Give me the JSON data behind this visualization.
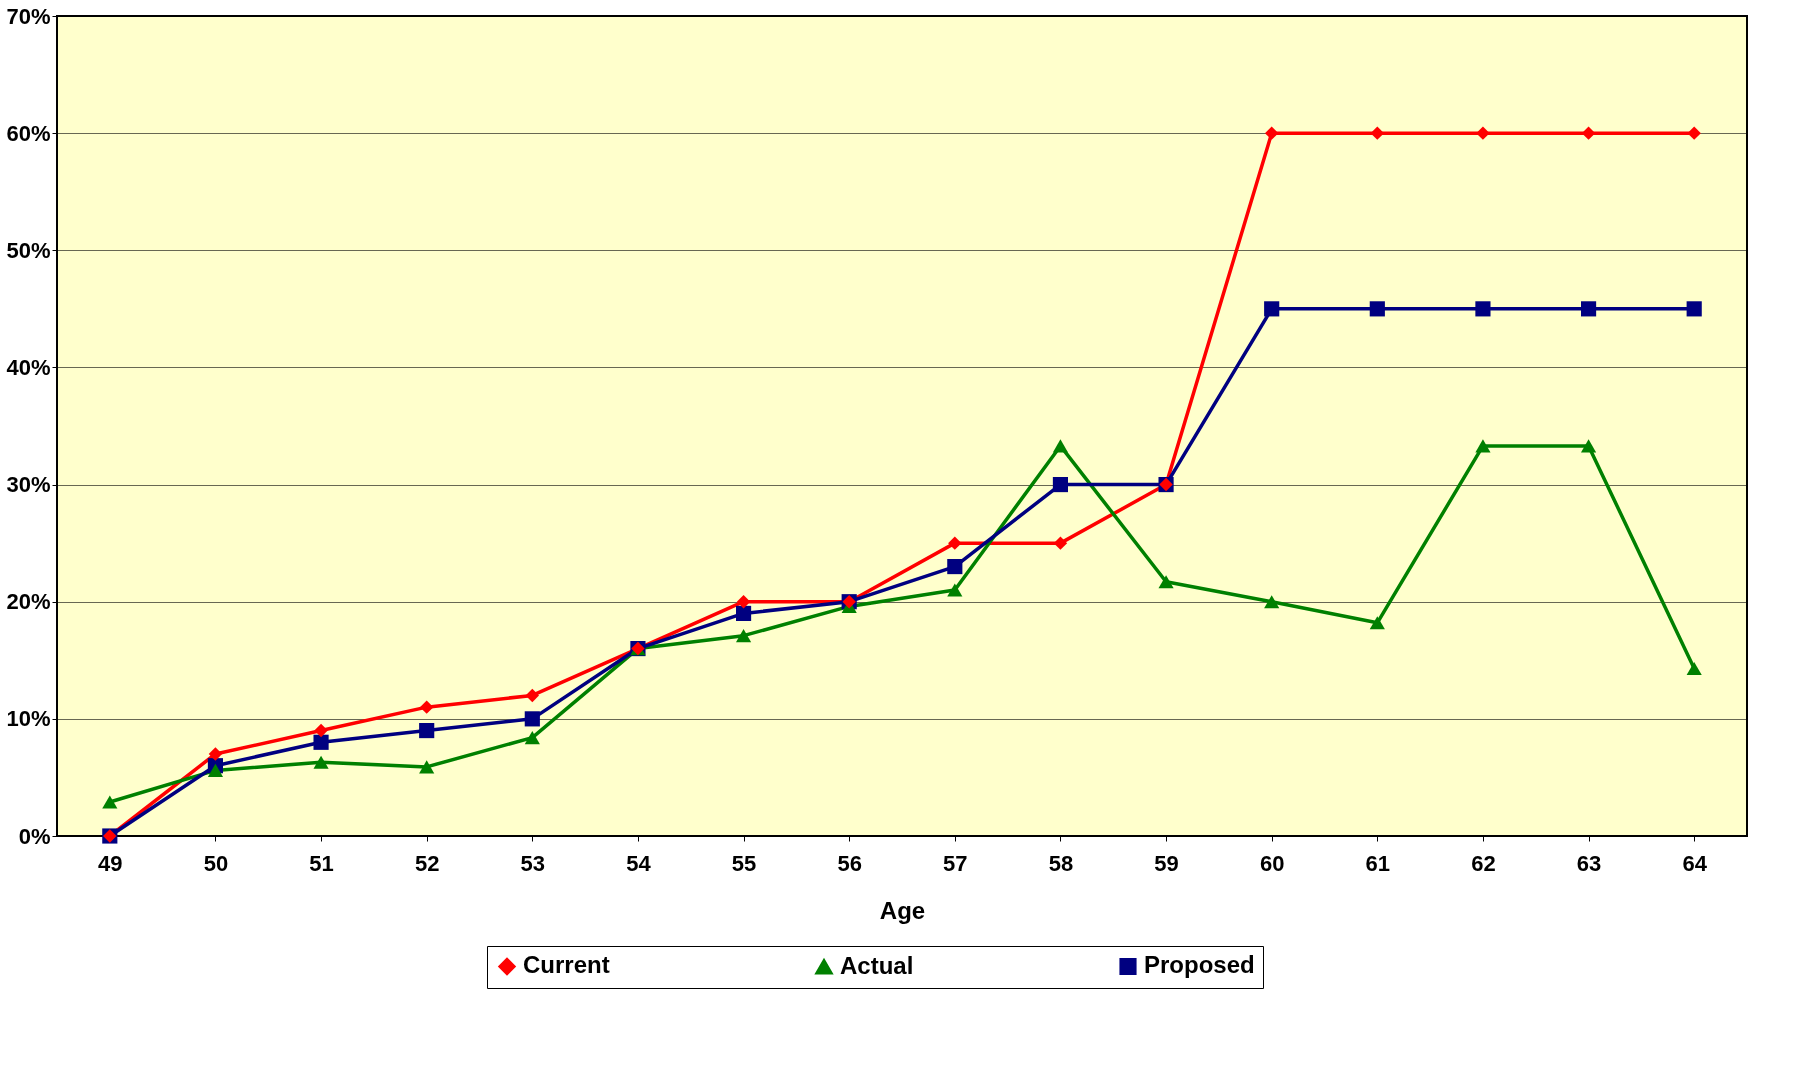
{
  "chart_data": {
    "type": "line",
    "xlabel": "Age",
    "categories": [
      "49",
      "50",
      "51",
      "52",
      "53",
      "54",
      "55",
      "56",
      "57",
      "58",
      "59",
      "60",
      "61",
      "62",
      "63",
      "64"
    ],
    "series": [
      {
        "name": "Current",
        "color": "#ff0000",
        "marker": "diamond",
        "values": [
          0,
          7,
          9,
          11,
          12,
          16,
          20,
          20,
          25,
          25,
          30,
          60,
          60,
          60,
          60,
          60
        ]
      },
      {
        "name": "Actual",
        "color": "#008000",
        "marker": "triangle",
        "values": [
          2.9,
          5.6,
          6.3,
          5.9,
          8.4,
          16,
          17.1,
          19.6,
          21,
          33.3,
          21.7,
          20,
          18.2,
          33.3,
          33.3,
          14.3
        ]
      },
      {
        "name": "Proposed",
        "color": "#000080",
        "marker": "square",
        "values": [
          0,
          6,
          8,
          9,
          10,
          16,
          19,
          20,
          23,
          30,
          30,
          45,
          45,
          45,
          45,
          45
        ]
      }
    ],
    "ylim": [
      0,
      70
    ],
    "yticks": [
      {
        "value": 0,
        "label": "0%"
      },
      {
        "value": 10,
        "label": "10%"
      },
      {
        "value": 20,
        "label": "20%"
      },
      {
        "value": 30,
        "label": "30%"
      },
      {
        "value": 40,
        "label": "40%"
      },
      {
        "value": 50,
        "label": "50%"
      },
      {
        "value": 60,
        "label": "60%"
      },
      {
        "value": 70,
        "label": "70%"
      }
    ],
    "grid": "y",
    "legend": "bottom",
    "line_style": "solid"
  }
}
